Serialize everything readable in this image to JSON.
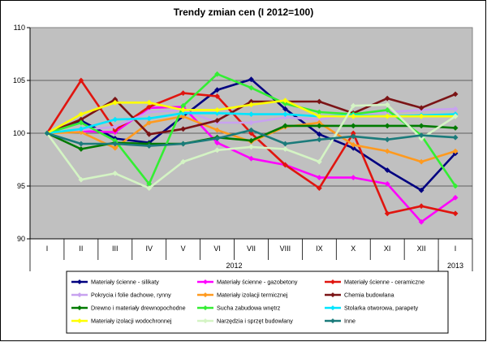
{
  "chart_data": {
    "type": "line",
    "title": "Trendy zmian cen (I 2012=100)",
    "categories": [
      "I",
      "II",
      "III",
      "IV",
      "V",
      "VI",
      "VII",
      "VIII",
      "IX",
      "X",
      "XI",
      "XII",
      "I"
    ],
    "year_groups": [
      {
        "label": "2012",
        "from": 0,
        "to": 11
      },
      {
        "label": "2013",
        "from": 12,
        "to": 12
      }
    ],
    "ylim": [
      90,
      110
    ],
    "yticks": [
      90,
      95,
      100,
      105,
      110
    ],
    "grid": true,
    "legend_position": "bottom",
    "series": [
      {
        "name": "Materiały ścienne - silikaty",
        "color": "#000080",
        "values": [
          100,
          101.2,
          99.5,
          99.1,
          101.6,
          104.1,
          105.1,
          102.3,
          99.9,
          98.6,
          96.5,
          94.6,
          98.1
        ]
      },
      {
        "name": "Materiały ścienne - gazobetony",
        "color": "#ff00ff",
        "values": [
          100,
          100.2,
          100.1,
          102.4,
          102.5,
          99.1,
          97.6,
          97.0,
          95.8,
          95.8,
          95.2,
          91.6,
          93.9
        ]
      },
      {
        "name": "Materiały ścienne - ceramiczne",
        "color": "#e0150f",
        "values": [
          100,
          105.0,
          100.3,
          102.5,
          103.8,
          103.5,
          100.0,
          97.0,
          94.8,
          100.0,
          92.4,
          93.1,
          92.4
        ]
      },
      {
        "name": "Pokrycia i folie dachowe, rynny",
        "color": "#c8a2f0",
        "values": [
          100,
          100.3,
          100.6,
          102.0,
          102.2,
          101.0,
          101.0,
          101.5,
          101.3,
          101.8,
          102.0,
          102.2,
          102.3
        ]
      },
      {
        "name": "Materiały izolacji termicznej",
        "color": "#ff9a1f",
        "values": [
          100,
          100.1,
          98.6,
          101.0,
          101.6,
          100.3,
          99.2,
          100.6,
          101.0,
          98.9,
          98.3,
          97.3,
          98.3
        ]
      },
      {
        "name": "Chemia budowlana",
        "color": "#7b1416",
        "values": [
          100,
          101.3,
          103.2,
          99.9,
          100.4,
          101.2,
          103.0,
          103.0,
          103.0,
          101.9,
          103.3,
          102.4,
          103.7
        ]
      },
      {
        "name": "Drewno i materiały drewnopochodne",
        "color": "#007a00",
        "values": [
          100,
          98.5,
          99.1,
          99.0,
          99.0,
          99.6,
          99.3,
          100.7,
          100.7,
          100.7,
          100.7,
          100.7,
          100.5
        ]
      },
      {
        "name": "Sucha zabudowa wnętrz",
        "color": "#33ee33",
        "values": [
          100,
          101.0,
          99.3,
          95.2,
          102.6,
          105.6,
          104.3,
          102.8,
          102.0,
          101.8,
          102.2,
          99.8,
          95.0
        ]
      },
      {
        "name": "Stolarka otworowa, parapety",
        "color": "#00e5ff",
        "values": [
          100,
          100.4,
          101.3,
          101.4,
          101.9,
          101.9,
          101.8,
          101.8,
          101.6,
          101.7,
          101.6,
          101.7,
          101.8
        ]
      },
      {
        "name": "Materiały izolacji wodochronnej",
        "color": "#ffff00",
        "values": [
          100,
          101.8,
          102.9,
          102.9,
          102.2,
          102.2,
          102.7,
          103.1,
          101.6,
          101.6,
          101.6,
          101.6,
          101.6
        ]
      },
      {
        "name": "Narzędzia i sprzęt budowlany",
        "color": "#d4f4c4",
        "values": [
          100,
          95.6,
          96.2,
          94.8,
          97.3,
          98.4,
          98.7,
          98.5,
          97.3,
          102.6,
          102.7,
          99.5,
          101.6
        ]
      },
      {
        "name": "Inne",
        "color": "#1b7b7b",
        "values": [
          100,
          99.0,
          99.0,
          98.8,
          99.0,
          99.5,
          100.3,
          99.0,
          99.4,
          99.7,
          99.4,
          99.8,
          99.6
        ]
      }
    ]
  }
}
